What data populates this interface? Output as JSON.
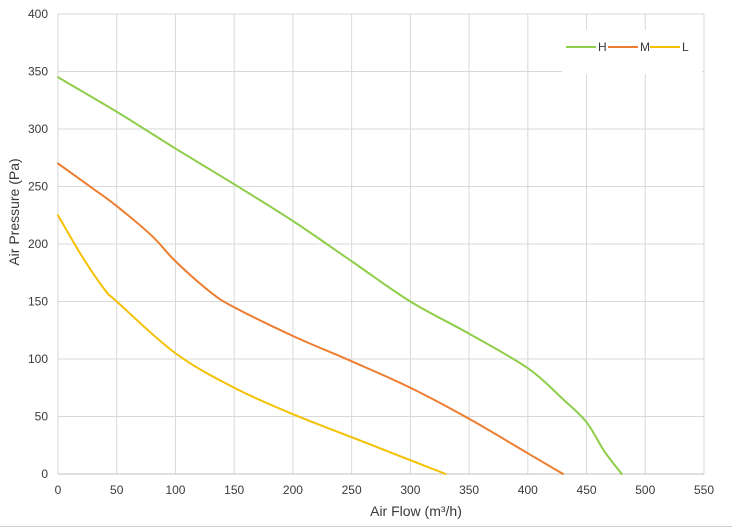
{
  "chart_data": {
    "type": "line",
    "title": "",
    "xlabel": "Air Flow  (m³/h)",
    "ylabel": "Air Pressure  (Pa)",
    "xlim": [
      0,
      550
    ],
    "ylim": [
      0,
      400
    ],
    "xticks": [
      0,
      50,
      100,
      150,
      200,
      250,
      300,
      350,
      400,
      450,
      500,
      550
    ],
    "yticks": [
      0,
      50,
      100,
      150,
      200,
      250,
      300,
      350,
      400
    ],
    "grid": true,
    "legend_position": "top-right",
    "series": [
      {
        "name": "H",
        "color": "#8fce4a",
        "x": [
          0,
          50,
          100,
          150,
          200,
          250,
          300,
          350,
          400,
          430,
          450,
          465,
          480
        ],
        "y": [
          345,
          315,
          283,
          252,
          220,
          185,
          150,
          122,
          92,
          65,
          45,
          20,
          0
        ]
      },
      {
        "name": "M",
        "color": "#ed7d31",
        "x": [
          0,
          30,
          50,
          80,
          100,
          130,
          150,
          200,
          250,
          300,
          350,
          400,
          430
        ],
        "y": [
          270,
          248,
          233,
          207,
          185,
          158,
          145,
          120,
          98,
          75,
          48,
          18,
          0
        ]
      },
      {
        "name": "L",
        "color": "#f5c000",
        "x": [
          0,
          20,
          40,
          50,
          100,
          150,
          200,
          250,
          300,
          330
        ],
        "y": [
          225,
          190,
          160,
          150,
          105,
          75,
          52,
          32,
          12,
          0
        ]
      }
    ]
  }
}
